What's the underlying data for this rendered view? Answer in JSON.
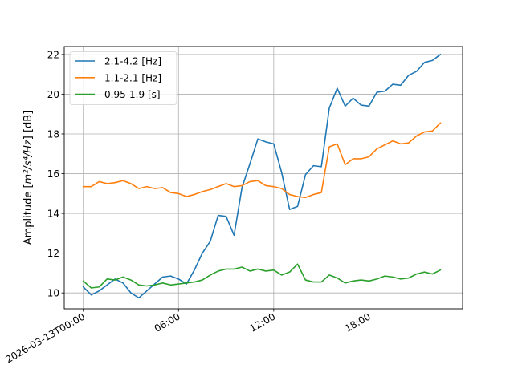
{
  "chart_data": {
    "type": "line",
    "x_start": "2026-03-13T00:00:00",
    "x_step_minutes": 30,
    "x_ticks": [
      {
        "hours": 0,
        "label": "2026-03-13T00:00"
      },
      {
        "hours": 6,
        "label": "06:00"
      },
      {
        "hours": 12,
        "label": "12:00"
      },
      {
        "hours": 18,
        "label": "18:00"
      }
    ],
    "xlim_hours": [
      -1.2,
      23.9
    ],
    "ylim": [
      9.2,
      22.4
    ],
    "y_ticks": [
      10,
      12,
      14,
      16,
      18,
      20,
      22
    ],
    "ylabel_prefix": "Amplitude [",
    "ylabel_math": "m²/s⁴/Hz",
    "ylabel_suffix": "] [dB]",
    "grid": true,
    "legend_position": "upper left",
    "series": [
      {
        "name": "2.1-4.2 [Hz]",
        "color": "#1f77b4",
        "values": [
          10.3,
          9.9,
          10.1,
          10.4,
          10.7,
          10.5,
          10.0,
          9.75,
          10.1,
          10.45,
          10.8,
          10.85,
          10.7,
          10.45,
          11.15,
          12.0,
          12.6,
          13.9,
          13.85,
          12.9,
          15.3,
          16.5,
          17.75,
          17.6,
          17.5,
          16.05,
          14.2,
          14.35,
          15.95,
          16.4,
          16.35,
          19.3,
          20.3,
          19.4,
          19.8,
          19.45,
          19.4,
          20.1,
          20.15,
          20.5,
          20.45,
          20.95,
          21.15,
          21.6,
          21.7,
          22.0
        ]
      },
      {
        "name": "1.1-2.1 [Hz]",
        "color": "#ff7f0e",
        "values": [
          15.35,
          15.35,
          15.6,
          15.5,
          15.55,
          15.65,
          15.5,
          15.25,
          15.35,
          15.25,
          15.3,
          15.05,
          15.0,
          14.85,
          14.95,
          15.1,
          15.2,
          15.35,
          15.5,
          15.35,
          15.4,
          15.6,
          15.65,
          15.4,
          15.35,
          15.25,
          14.95,
          14.85,
          14.8,
          14.95,
          15.05,
          17.35,
          17.5,
          16.45,
          16.75,
          16.75,
          16.85,
          17.25,
          17.45,
          17.65,
          17.5,
          17.55,
          17.9,
          18.1,
          18.15,
          18.55
        ]
      },
      {
        "name": "0.95-1.9 [s]",
        "color": "#2ca02c",
        "values": [
          10.6,
          10.25,
          10.3,
          10.7,
          10.65,
          10.8,
          10.65,
          10.4,
          10.35,
          10.4,
          10.5,
          10.4,
          10.45,
          10.5,
          10.55,
          10.65,
          10.9,
          11.1,
          11.2,
          11.2,
          11.3,
          11.1,
          11.2,
          11.1,
          11.15,
          10.9,
          11.05,
          11.45,
          10.65,
          10.55,
          10.55,
          10.9,
          10.75,
          10.5,
          10.6,
          10.65,
          10.6,
          10.7,
          10.85,
          10.8,
          10.7,
          10.75,
          10.95,
          11.05,
          10.95,
          11.15
        ]
      }
    ]
  }
}
